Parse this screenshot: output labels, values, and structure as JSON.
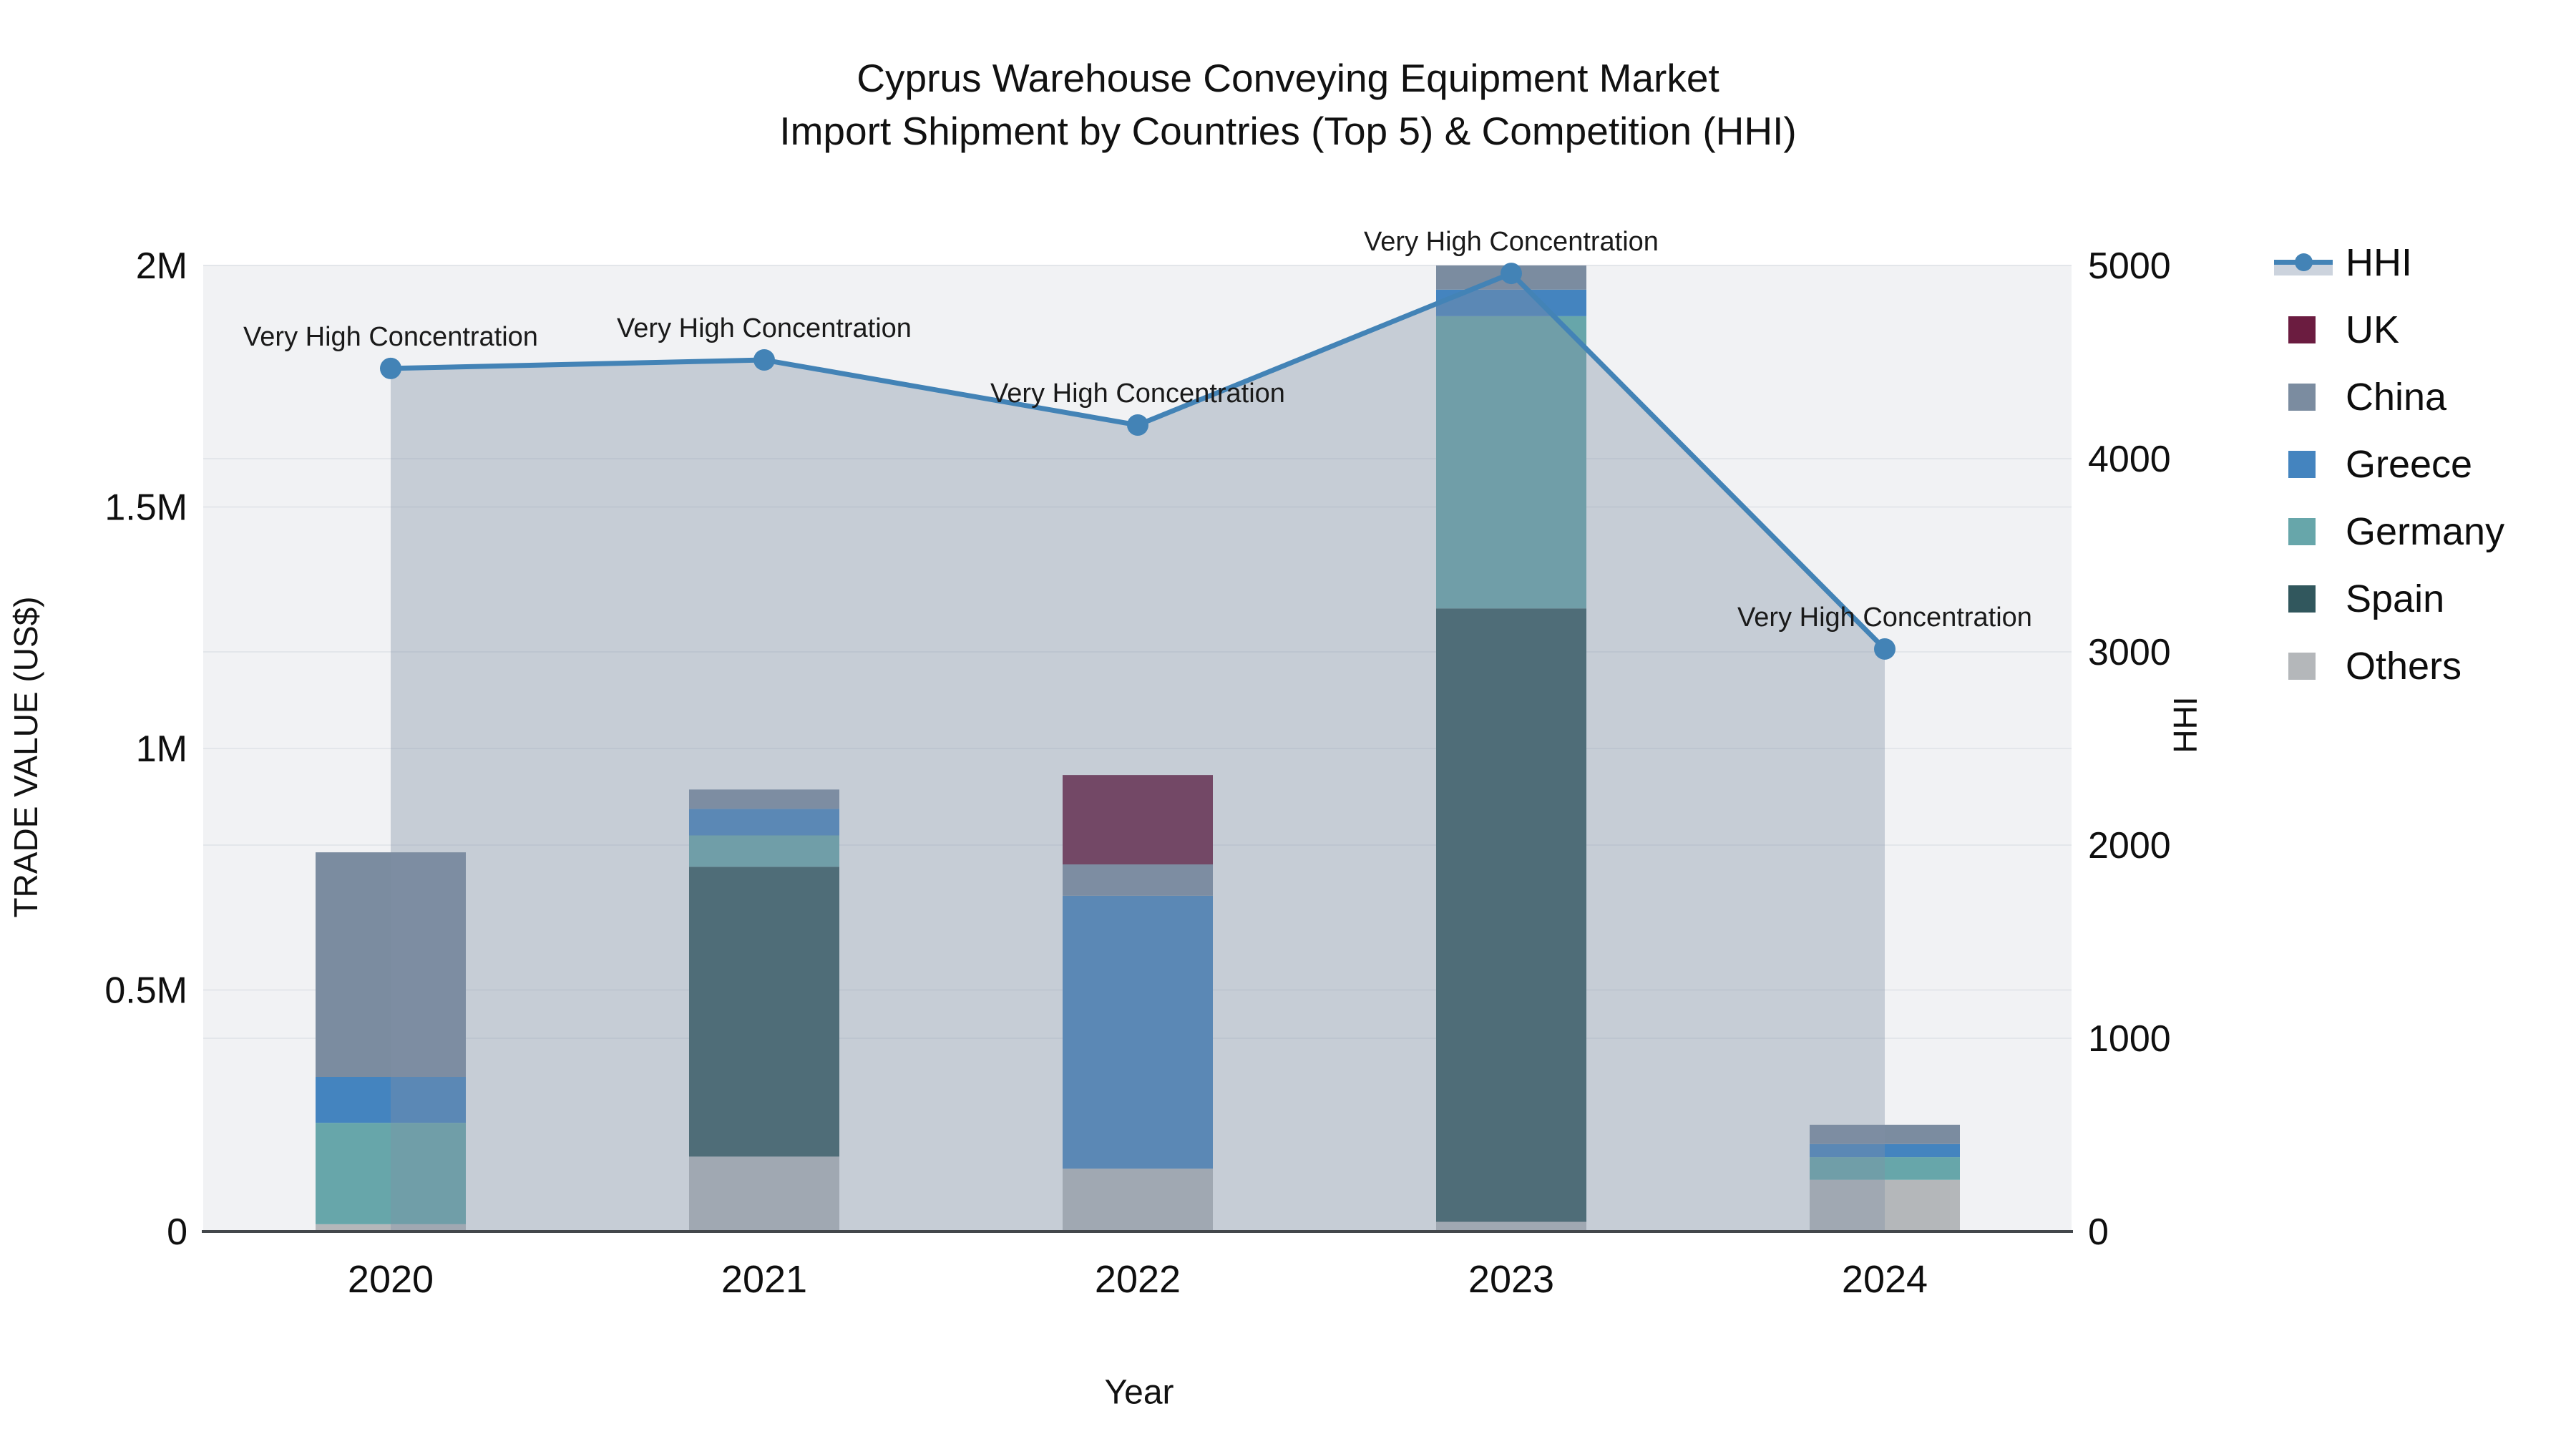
{
  "title": {
    "line1": "Cyprus Warehouse Conveying Equipment Market",
    "line2": "Import Shipment by Countries (Top 5) & Competition (HHI)"
  },
  "y_axis_left": {
    "title": "TRADE VALUE (US$)",
    "tick_labels": [
      "0",
      "0.5M",
      "1M",
      "1.5M",
      "2M"
    ],
    "tick_values": [
      0,
      500000,
      1000000,
      1500000,
      2000000
    ],
    "grid_values": [
      500000,
      1000000,
      1500000,
      2000000
    ]
  },
  "y_axis_right": {
    "title": "HHI",
    "tick_labels": [
      "0",
      "1000",
      "2000",
      "3000",
      "4000",
      "5000"
    ],
    "tick_values": [
      0,
      1000,
      2000,
      3000,
      4000,
      5000
    ],
    "grid_values": [
      1000,
      2000,
      3000,
      4000,
      5000
    ]
  },
  "x_axis": {
    "title": "Year",
    "categories": [
      "2020",
      "2021",
      "2022",
      "2023",
      "2024"
    ]
  },
  "legend": {
    "items": [
      {
        "label": "HHI",
        "type": "line",
        "color": "#4383b6",
        "band_color": "#ccd3dd"
      },
      {
        "label": "UK",
        "type": "swatch",
        "color": "#6b1c40"
      },
      {
        "label": "China",
        "type": "swatch",
        "color": "#7b8ca0"
      },
      {
        "label": "Greece",
        "type": "swatch",
        "color": "#4484bf"
      },
      {
        "label": "Germany",
        "type": "swatch",
        "color": "#67a6aa"
      },
      {
        "label": "Spain",
        "type": "swatch",
        "color": "#31575d"
      },
      {
        "label": "Others",
        "type": "swatch",
        "color": "#b4b7ba"
      }
    ]
  },
  "chart_data": {
    "type": "combo",
    "subtype": [
      "stacked-bar",
      "line-with-area"
    ],
    "title": "Cyprus Warehouse Conveying Equipment Market — Import Shipment by Countries (Top 5) & Competition (HHI)",
    "xlabel": "Year",
    "ylabel_left": "TRADE VALUE (US$)",
    "ylabel_right": "HHI",
    "categories": [
      "2020",
      "2021",
      "2022",
      "2023",
      "2024"
    ],
    "bar_series_bottom_to_top": [
      {
        "name": "Others",
        "color": "#b4b7ba",
        "values": [
          15000,
          155000,
          130000,
          20000,
          107000
        ]
      },
      {
        "name": "Spain",
        "color": "#31575d",
        "values": [
          0,
          600000,
          0,
          1270000,
          0
        ]
      },
      {
        "name": "Germany",
        "color": "#67a6aa",
        "values": [
          210000,
          65000,
          0,
          605000,
          47000
        ]
      },
      {
        "name": "Greece",
        "color": "#4484bf",
        "values": [
          95000,
          55000,
          565000,
          55000,
          27000
        ]
      },
      {
        "name": "China",
        "color": "#7b8ca0",
        "values": [
          465000,
          40000,
          65000,
          50000,
          40000
        ]
      },
      {
        "name": "UK",
        "color": "#6b1c40",
        "values": [
          0,
          0,
          185000,
          0,
          0
        ]
      }
    ],
    "bar_totals": [
      785000,
      915000,
      945000,
      2000000,
      221000
    ],
    "line_series": {
      "name": "HHI",
      "values": [
        4467,
        4511,
        4174,
        4959,
        3015
      ],
      "color": "#4383b6",
      "marker": "circle",
      "area_fill": "rgba(128,144,166,0.38)"
    },
    "annotations": [
      "Very High Concentration",
      "Very High Concentration",
      "Very High Concentration",
      "Very High Concentration",
      "Very High Concentration"
    ],
    "ylim_left": [
      0,
      2000000
    ],
    "ylim_right": [
      0,
      5000
    ],
    "legend_position": "right",
    "grid": true,
    "plot_bg": "#f1f2f4",
    "grid_color": "#e3e6ea",
    "axis_line_color": "#43474b",
    "text_color": "#0f0f0f"
  }
}
